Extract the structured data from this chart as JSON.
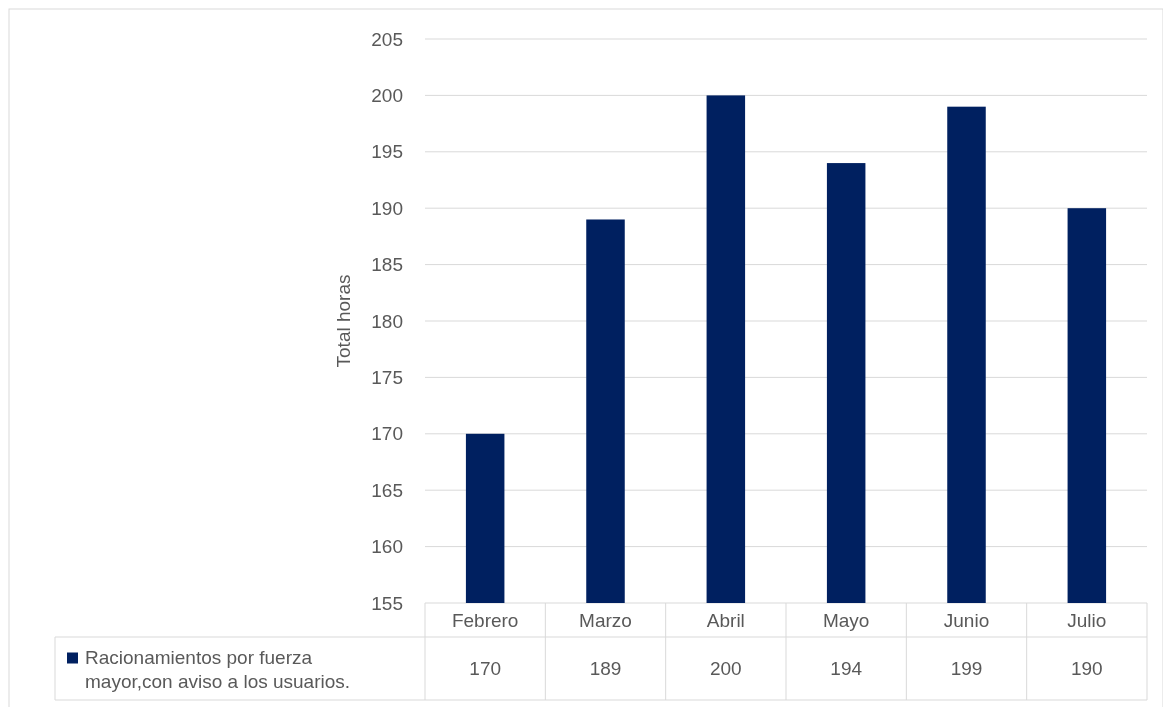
{
  "chart_data": {
    "type": "bar",
    "ylabel": "Total horas",
    "categories": [
      "Febrero",
      "Marzo",
      "Abril",
      "Mayo",
      "Junio",
      "Julio"
    ],
    "series": [
      {
        "name": "Racionamientos por fuerza mayor,con aviso a los usuarios.",
        "color": "#002060",
        "values": [
          170,
          189,
          200,
          194,
          199,
          190
        ]
      }
    ],
    "ylim": [
      155,
      205
    ],
    "yticks": [
      155,
      160,
      165,
      170,
      175,
      180,
      185,
      190,
      195,
      200,
      205
    ],
    "grid": "y",
    "data_labels": true,
    "legend": "bottom"
  }
}
